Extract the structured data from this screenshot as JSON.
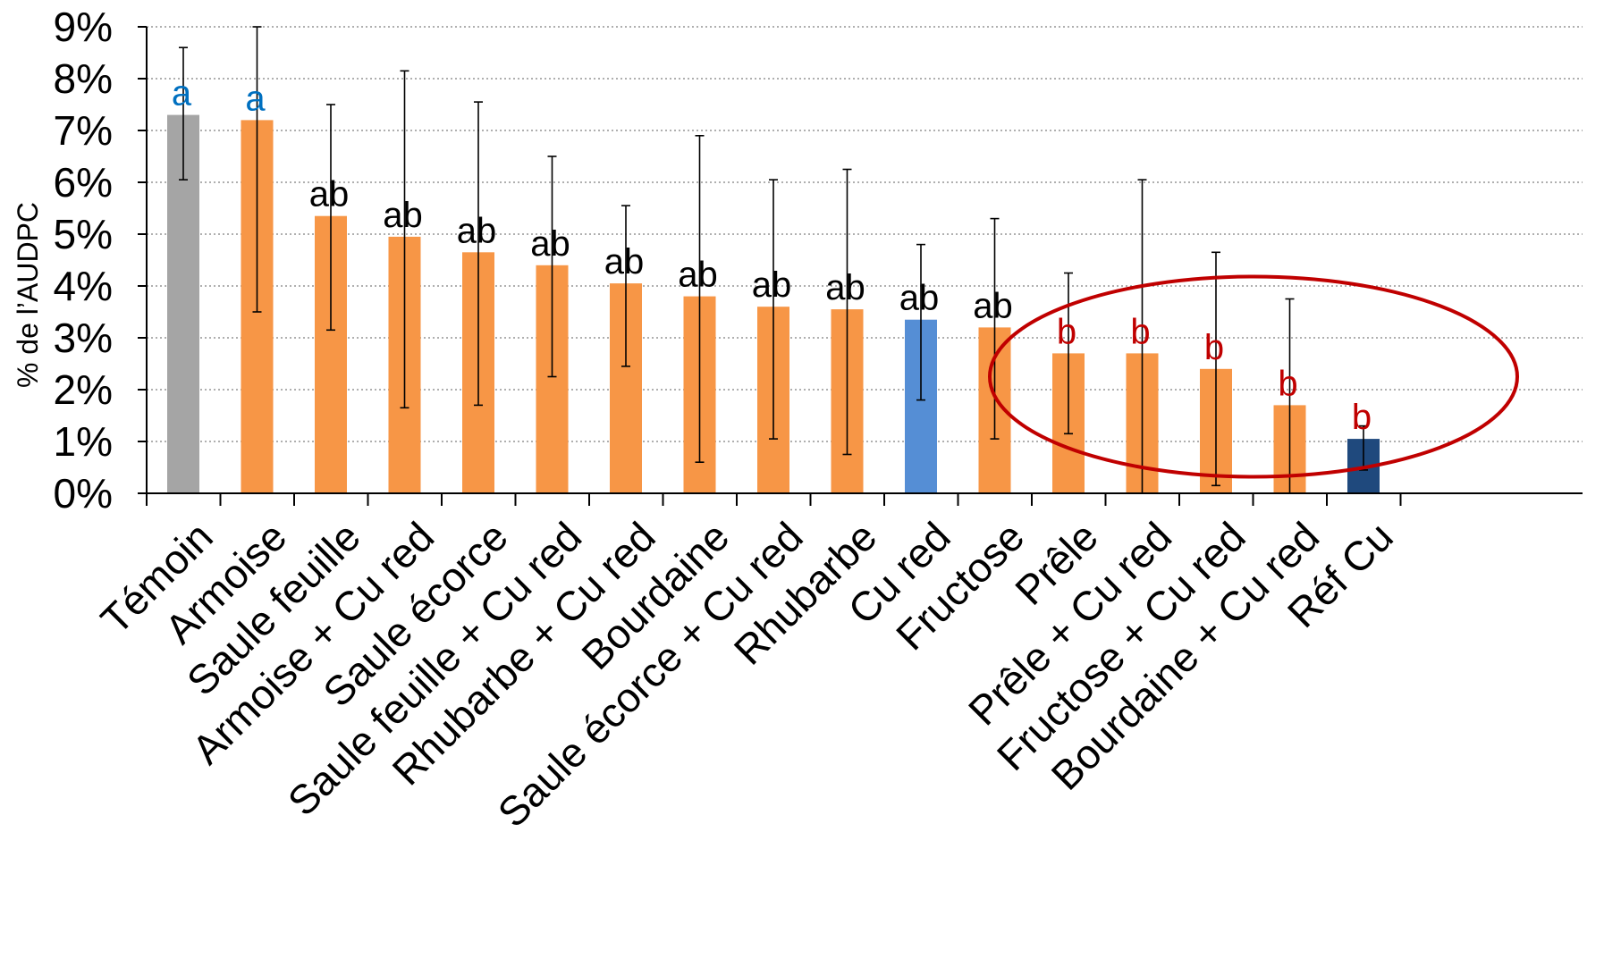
{
  "chart_data": {
    "type": "bar",
    "title": "",
    "xlabel": "",
    "ylabel": "% de l’AUDPC",
    "ylim": [
      0,
      9
    ],
    "yticks": [
      "0%",
      "1%",
      "2%",
      "3%",
      "4%",
      "5%",
      "6%",
      "7%",
      "8%",
      "9%"
    ],
    "grid": true,
    "legend": "none",
    "categories": [
      "Témoin",
      "Armoise",
      "Saule feuille",
      "Armoise + Cu red",
      "Saule écorce",
      "Saule feuille + Cu red",
      "Rhubarbe + Cu red",
      "Bourdaine",
      "Saule écorce + Cu red",
      "Rhubarbe",
      "Cu red",
      "Fructose",
      "Prêle",
      "Prêle + Cu red",
      "Fructose + Cu red",
      "Bourdaine + Cu red",
      "Réf Cu"
    ],
    "values": [
      7.3,
      7.2,
      5.35,
      4.95,
      4.65,
      4.4,
      4.05,
      3.8,
      3.6,
      3.55,
      3.35,
      3.2,
      2.7,
      2.7,
      2.4,
      1.7,
      1.05
    ],
    "error_low": [
      6.05,
      3.5,
      3.15,
      1.65,
      1.7,
      2.25,
      2.45,
      0.6,
      1.05,
      0.75,
      1.8,
      1.05,
      1.15,
      0.0,
      0.15,
      0.0,
      0.45
    ],
    "error_high": [
      8.6,
      9.0,
      7.5,
      8.15,
      7.55,
      6.5,
      5.55,
      6.9,
      6.05,
      6.25,
      4.8,
      5.3,
      4.25,
      6.05,
      4.65,
      3.75,
      1.3
    ],
    "significance": [
      "a",
      "a",
      "ab",
      "ab",
      "ab",
      "ab",
      "ab",
      "ab",
      "ab",
      "ab",
      "ab",
      "ab",
      "b",
      "b",
      "b",
      "b",
      "b"
    ],
    "bar_colors": [
      "#a5a5a5",
      "#f79646",
      "#f79646",
      "#f79646",
      "#f79646",
      "#f79646",
      "#f79646",
      "#f79646",
      "#f79646",
      "#f79646",
      "#558ed5",
      "#f79646",
      "#f79646",
      "#f79646",
      "#f79646",
      "#f79646",
      "#1f497d"
    ],
    "label_colors": [
      "#0070c0",
      "#0070c0",
      "#000000",
      "#000000",
      "#000000",
      "#000000",
      "#000000",
      "#000000",
      "#000000",
      "#000000",
      "#000000",
      "#000000",
      "#c00000",
      "#c00000",
      "#c00000",
      "#c00000",
      "#c00000"
    ],
    "annotation": {
      "shape": "ellipse",
      "color": "#c00000",
      "encloses": [
        "Prêle",
        "Prêle + Cu red",
        "Fructose + Cu red",
        "Bourdaine + Cu red",
        "Réf Cu"
      ]
    }
  }
}
